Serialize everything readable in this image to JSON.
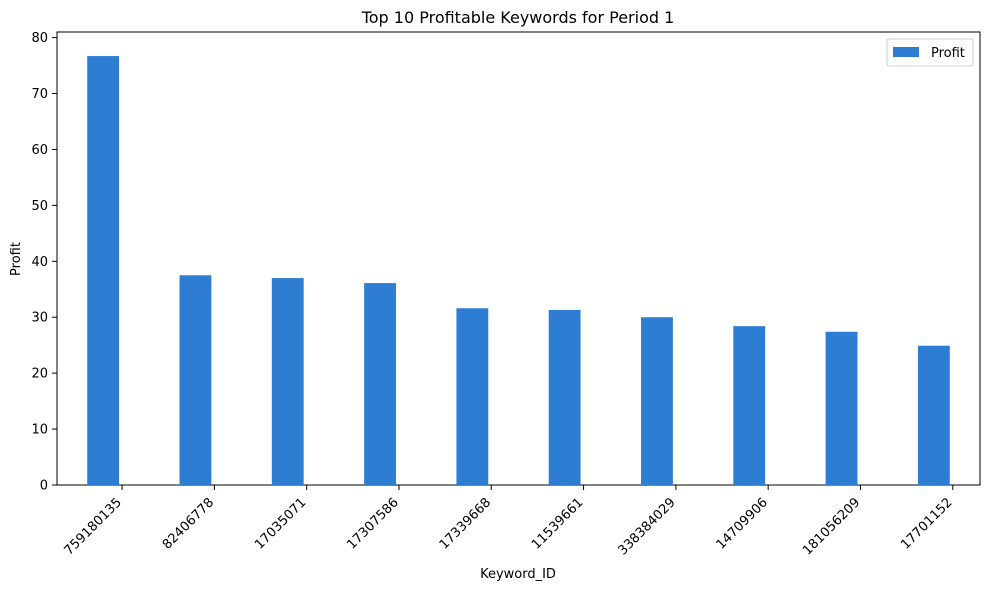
{
  "chart_data": {
    "type": "bar",
    "title": "Top 10 Profitable Keywords for Period 1",
    "xlabel": "Keyword_ID",
    "ylabel": "Profit",
    "categories": [
      "759180135",
      "82406778",
      "17035071",
      "17307586",
      "17339668",
      "11539661",
      "338384029",
      "14709906",
      "181056209",
      "17701152"
    ],
    "series": [
      {
        "name": "Profit",
        "color": "#2d7dd2",
        "values": [
          76.7,
          37.5,
          37.0,
          36.1,
          31.6,
          31.3,
          30.0,
          28.4,
          27.4,
          24.9
        ]
      }
    ],
    "ylim": [
      0,
      81
    ],
    "yticks": [
      0,
      10,
      20,
      30,
      40,
      50,
      60,
      70,
      80
    ],
    "legend": "top-right",
    "grid": false
  }
}
